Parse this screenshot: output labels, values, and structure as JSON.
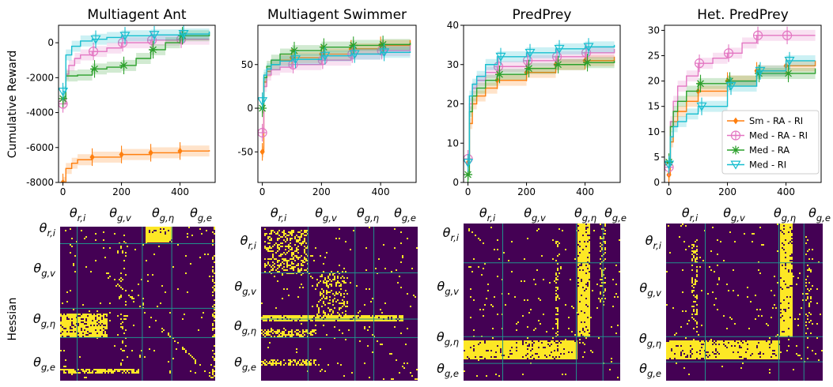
{
  "figure": {
    "ylabel_top": "Cumulative Reward",
    "ylabel_bottom": "Hessian"
  },
  "colors": {
    "Sm - RA - RI": "#ff7f0e",
    "Med - RA - RI": "#e377c2",
    "Med - RA": "#2ca02c",
    "Med - RI": "#17becf",
    "heat_bg": "#440154",
    "heat_fg": "#fde725",
    "heat_grid": "#21918c"
  },
  "legend": {
    "placement": "right-center of Het. PredPrey panel",
    "entries": [
      "Sm - RA - RI",
      "Med - RA - RI",
      "Med - RA",
      "Med - RI"
    ]
  },
  "chart_data": [
    {
      "type": "line",
      "title": "Multiagent Ant",
      "ylabel": "Cumulative Reward",
      "xlim": [
        -15,
        520
      ],
      "ylim": [
        -8000,
        1000
      ],
      "xticks": [
        0,
        200,
        400
      ],
      "yticks": [
        -8000,
        -6000,
        -4000,
        -2000,
        0
      ],
      "series": [
        {
          "name": "Sm - RA - RI",
          "marker": "diamond",
          "x": [
            0,
            10,
            30,
            50,
            100,
            200,
            300,
            400,
            500
          ],
          "y": [
            -8000,
            -7200,
            -6900,
            -6700,
            -6550,
            -6400,
            -6300,
            -6200,
            -6150
          ]
        },
        {
          "name": "Med - RA - RI",
          "marker": "circle-plus",
          "x": [
            0,
            10,
            20,
            40,
            60,
            100,
            150,
            200,
            300,
            400,
            500
          ],
          "y": [
            -3500,
            -1800,
            -1300,
            -900,
            -700,
            -500,
            -300,
            0,
            150,
            200,
            200
          ]
        },
        {
          "name": "Med - RA",
          "marker": "star",
          "x": [
            0,
            10,
            50,
            100,
            150,
            200,
            250,
            300,
            350,
            400,
            500
          ],
          "y": [
            -3200,
            -1900,
            -1850,
            -1500,
            -1400,
            -1300,
            -900,
            -400,
            0,
            400,
            600
          ]
        },
        {
          "name": "Med - RI",
          "marker": "triangle-down",
          "x": [
            0,
            10,
            30,
            60,
            100,
            150,
            200,
            300,
            400,
            500
          ],
          "y": [
            -2800,
            -700,
            -200,
            100,
            200,
            300,
            400,
            450,
            500,
            650
          ]
        }
      ]
    },
    {
      "type": "line",
      "title": "Multiagent Swimmer",
      "xlim": [
        -15,
        520
      ],
      "ylim": [
        -85,
        95
      ],
      "xticks": [
        0,
        200,
        400
      ],
      "yticks": [
        -50,
        0,
        50
      ],
      "series": [
        {
          "name": "Sm - RA - RI",
          "marker": "diamond",
          "x": [
            0,
            5,
            15,
            30,
            60,
            100,
            200,
            300,
            400,
            500
          ],
          "y": [
            -50,
            30,
            42,
            50,
            55,
            58,
            62,
            68,
            72,
            78
          ]
        },
        {
          "name": "Med - RA - RI",
          "marker": "circle-plus",
          "x": [
            0,
            5,
            15,
            30,
            60,
            100,
            200,
            300,
            400,
            500
          ],
          "y": [
            -28,
            25,
            38,
            44,
            47,
            50,
            55,
            62,
            66,
            72
          ]
        },
        {
          "name": "Med - RA",
          "marker": "star",
          "x": [
            0,
            5,
            15,
            30,
            60,
            100,
            200,
            300,
            400,
            500
          ],
          "y": [
            0,
            35,
            48,
            55,
            62,
            66,
            70,
            72,
            73,
            75
          ]
        },
        {
          "name": "Med - RI",
          "marker": "triangle-down",
          "x": [
            0,
            5,
            15,
            30,
            60,
            100,
            200,
            300,
            400,
            500
          ],
          "y": [
            8,
            38,
            45,
            50,
            54,
            56,
            60,
            62,
            64,
            65
          ]
        }
      ]
    },
    {
      "type": "line",
      "title": "PredPrey",
      "xlim": [
        -15,
        520
      ],
      "ylim": [
        0,
        40
      ],
      "xticks": [
        0,
        200,
        400
      ],
      "yticks": [
        0,
        10,
        20,
        30,
        40
      ],
      "series": [
        {
          "name": "Sm - RA - RI",
          "marker": "diamond",
          "x": [
            0,
            5,
            15,
            30,
            60,
            100,
            200,
            300,
            400,
            500
          ],
          "y": [
            5,
            15,
            20,
            22,
            24,
            26,
            28,
            30,
            31,
            32
          ]
        },
        {
          "name": "Med - RA - RI",
          "marker": "circle-plus",
          "x": [
            0,
            5,
            15,
            30,
            60,
            100,
            200,
            300,
            400,
            500
          ],
          "y": [
            6,
            20,
            24,
            26,
            28,
            29.5,
            31,
            32,
            33,
            34
          ]
        },
        {
          "name": "Med - RA",
          "marker": "star",
          "x": [
            0,
            5,
            15,
            30,
            60,
            100,
            200,
            300,
            400,
            500
          ],
          "y": [
            2,
            18,
            22,
            24,
            26,
            27.5,
            29,
            30,
            30.5,
            31
          ]
        },
        {
          "name": "Med - RI",
          "marker": "triangle-down",
          "x": [
            0,
            5,
            15,
            30,
            60,
            100,
            200,
            300,
            400,
            500
          ],
          "y": [
            5,
            22,
            25,
            27,
            30,
            32,
            33,
            34,
            34.5,
            35
          ]
        }
      ]
    },
    {
      "type": "line",
      "title": "Het. PredPrey",
      "xlim": [
        -15,
        520
      ],
      "ylim": [
        0,
        31
      ],
      "xticks": [
        0,
        200,
        400
      ],
      "yticks": [
        0,
        5,
        10,
        15,
        20,
        25,
        30
      ],
      "series": [
        {
          "name": "Sm - RA - RI",
          "marker": "diamond",
          "x": [
            0,
            5,
            15,
            30,
            60,
            100,
            200,
            300,
            400,
            500
          ],
          "y": [
            1.5,
            8,
            12,
            14,
            16,
            18,
            20,
            22,
            23,
            24
          ]
        },
        {
          "name": "Med - RA - RI",
          "marker": "circle-plus",
          "x": [
            0,
            5,
            15,
            30,
            60,
            100,
            150,
            200,
            250,
            300,
            400,
            500
          ],
          "y": [
            3,
            12,
            16,
            19,
            21,
            23.5,
            24.5,
            25.5,
            27.5,
            29,
            29,
            29
          ]
        },
        {
          "name": "Med - RA",
          "marker": "star",
          "x": [
            0,
            5,
            15,
            30,
            60,
            100,
            200,
            300,
            400,
            500
          ],
          "y": [
            4,
            11,
            14,
            16,
            18,
            19.5,
            20,
            21.5,
            21.5,
            22.5
          ]
        },
        {
          "name": "Med - RI",
          "marker": "triangle-down",
          "x": [
            0,
            5,
            15,
            30,
            60,
            100,
            200,
            300,
            400,
            500
          ],
          "y": [
            3.5,
            9,
            11,
            12,
            13.5,
            15,
            19,
            22,
            24,
            24
          ]
        }
      ]
    },
    {
      "type": "heatmap",
      "title": "Multiagent Ant",
      "ylabel": "Hessian",
      "blocks": [
        "θ_{r,i}",
        "θ_{g,v}",
        "θ_{g,η}",
        "θ_{g,e}"
      ],
      "block_sizes": [
        0.11,
        0.42,
        0.19,
        0.28
      ]
    },
    {
      "type": "heatmap",
      "title": "Multiagent Swimmer",
      "blocks": [
        "θ_{r,i}",
        "θ_{g,v}",
        "θ_{g,η}",
        "θ_{g,e}"
      ],
      "block_sizes": [
        0.3,
        0.3,
        0.12,
        0.28
      ]
    },
    {
      "type": "heatmap",
      "title": "PredPrey",
      "blocks": [
        "θ_{r,i}",
        "θ_{g,v}",
        "θ_{g,η}",
        "θ_{g,e}"
      ],
      "block_sizes": [
        0.25,
        0.47,
        0.17,
        0.11
      ]
    },
    {
      "type": "heatmap",
      "title": "Het. PredPrey",
      "blocks": [
        "θ_{r,i}",
        "θ_{g,v}",
        "θ_{g,η}",
        "θ_{g,e}"
      ],
      "block_sizes": [
        0.25,
        0.47,
        0.16,
        0.12
      ]
    }
  ]
}
